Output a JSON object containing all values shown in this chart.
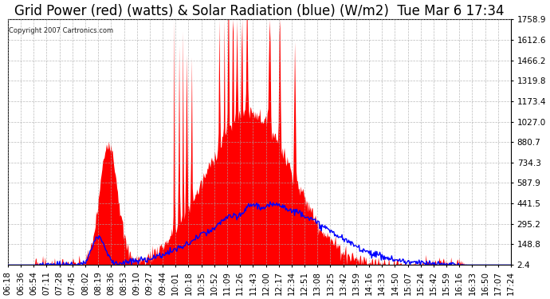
{
  "title": "Grid Power (red) (watts) & Solar Radiation (blue) (W/m2)  Tue Mar 6 17:34",
  "copyright_text": "Copyright 2007 Cartronics.com",
  "background_color": "#ffffff",
  "grid_color": "#aaaaaa",
  "yticks": [
    2.4,
    148.8,
    295.2,
    441.5,
    587.9,
    734.3,
    880.7,
    1027.0,
    1173.4,
    1319.8,
    1466.2,
    1612.6,
    1758.9
  ],
  "ymax": 1758.9,
  "ymin": 0,
  "x_labels": [
    "06:18",
    "06:36",
    "06:54",
    "07:11",
    "07:28",
    "07:45",
    "08:02",
    "08:19",
    "08:36",
    "08:53",
    "09:10",
    "09:27",
    "09:44",
    "10:01",
    "10:18",
    "10:35",
    "10:52",
    "11:09",
    "11:26",
    "11:43",
    "12:00",
    "12:17",
    "12:34",
    "12:51",
    "13:08",
    "13:25",
    "13:42",
    "13:59",
    "14:16",
    "14:33",
    "14:50",
    "15:07",
    "15:24",
    "15:42",
    "15:59",
    "16:16",
    "16:33",
    "16:50",
    "17:07",
    "17:24"
  ],
  "red_fill_color": "#ff0000",
  "blue_line_color": "#0000ff",
  "title_fontsize": 12,
  "tick_label_fontsize": 7.5,
  "figsize": [
    6.9,
    3.75
  ],
  "dpi": 100
}
